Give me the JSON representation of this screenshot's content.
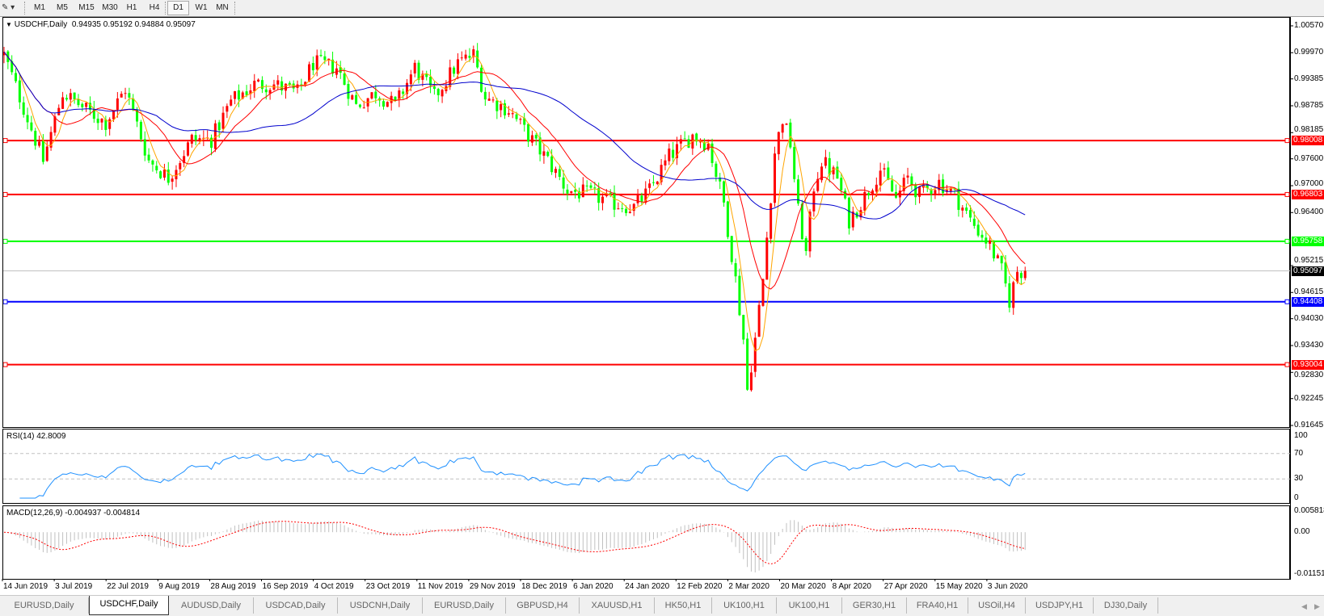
{
  "toolbar": {
    "timeframes": [
      "M1",
      "M5",
      "M15",
      "M30",
      "H1",
      "H4",
      "D1",
      "W1",
      "MN"
    ],
    "active_timeframe": "D1"
  },
  "main": {
    "symbol_label": "USDCHF,Daily",
    "ohlc": "0.94935 0.95192 0.94884 0.95097"
  },
  "chart_data": {
    "type": "candlestick",
    "symbol": "USDCHF",
    "timeframe": "Daily",
    "last_bar": {
      "open": 0.94935,
      "high": 0.95192,
      "low": 0.94884,
      "close": 0.95097
    },
    "bull_color": "#ff0000",
    "bear_color": "#00ff00",
    "close_anchors": [
      [
        0,
        0.99926
      ],
      [
        10,
        0.97557
      ],
      [
        15,
        0.99073
      ],
      [
        21,
        0.98694
      ],
      [
        26,
        0.9841
      ],
      [
        31,
        0.99168
      ],
      [
        37,
        0.97557
      ],
      [
        42,
        0.97178
      ],
      [
        48,
        0.98031
      ],
      [
        53,
        0.98031
      ],
      [
        58,
        0.98883
      ],
      [
        64,
        0.99262
      ],
      [
        69,
        0.99262
      ],
      [
        75,
        0.99073
      ],
      [
        79,
        0.99736
      ],
      [
        85,
        0.99641
      ],
      [
        90,
        0.98789
      ],
      [
        95,
        0.99073
      ],
      [
        100,
        0.98789
      ],
      [
        105,
        0.99641
      ],
      [
        110,
        0.98978
      ],
      [
        116,
        0.99736
      ],
      [
        120,
        0.99926
      ],
      [
        123,
        0.98978
      ],
      [
        129,
        0.98694
      ],
      [
        134,
        0.98125
      ],
      [
        139,
        0.97557
      ],
      [
        144,
        0.96894
      ],
      [
        150,
        0.96799
      ],
      [
        156,
        0.96609
      ],
      [
        161,
        0.96515
      ],
      [
        165,
        0.96894
      ],
      [
        170,
        0.97652
      ],
      [
        176,
        0.98125
      ],
      [
        180,
        0.97936
      ],
      [
        184,
        0.96609
      ],
      [
        187,
        0.94904
      ],
      [
        189,
        0.93577
      ],
      [
        190,
        0.9244
      ],
      [
        192,
        0.93577
      ],
      [
        194,
        0.94904
      ],
      [
        197,
        0.97746
      ],
      [
        199,
        0.98504
      ],
      [
        201,
        0.97936
      ],
      [
        203,
        0.9642
      ],
      [
        205,
        0.95472
      ],
      [
        207,
        0.96988
      ],
      [
        209,
        0.97557
      ],
      [
        213,
        0.97178
      ],
      [
        216,
        0.9623
      ],
      [
        219,
        0.96609
      ],
      [
        224,
        0.97367
      ],
      [
        228,
        0.96704
      ],
      [
        231,
        0.97178
      ],
      [
        234,
        0.96799
      ],
      [
        239,
        0.97083
      ],
      [
        243,
        0.96799
      ],
      [
        247,
        0.9623
      ],
      [
        252,
        0.95662
      ],
      [
        255,
        0.95093
      ],
      [
        257,
        0.9443
      ],
      [
        259,
        0.95093
      ],
      [
        261,
        0.95097
      ]
    ],
    "price_axis": {
      "ylim": [
        0.91645,
        1.0057
      ],
      "ticks": [
        "1.00570",
        "0.99970",
        "0.99385",
        "0.98785",
        "0.98185",
        "0.97600",
        "0.97000",
        "0.96400",
        "0.95215",
        "0.94615",
        "0.94030",
        "0.93430",
        "0.92830",
        "0.92245",
        "0.91645"
      ]
    },
    "levels": [
      {
        "price": "0.98008",
        "color": "#ff0000"
      },
      {
        "price": "0.96803",
        "color": "#ff0000"
      },
      {
        "price": "0.95758",
        "color": "#00ff00"
      },
      {
        "price": "0.94408",
        "color": "#0000ff"
      },
      {
        "price": "0.93004",
        "color": "#ff0000"
      }
    ],
    "bid_line": {
      "price": "0.95097",
      "color": "#c0c0c0",
      "label_bg": "#000000"
    },
    "moving_average_colors": [
      "#ffa500",
      "#ff0000",
      "#0000cd"
    ],
    "x_labels": [
      "14 Jun 2019",
      "3 Jul 2019",
      "22 Jul 2019",
      "9 Aug 2019",
      "28 Aug 2019",
      "16 Sep 2019",
      "4 Oct 2019",
      "23 Oct 2019",
      "11 Nov 2019",
      "29 Nov 2019",
      "18 Dec 2019",
      "6 Jan 2020",
      "24 Jan 2020",
      "12 Feb 2020",
      "2 Mar 2020",
      "20 Mar 2020",
      "8 Apr 2020",
      "27 Apr 2020",
      "15 May 2020",
      "3 Jun 2020"
    ]
  },
  "rsi": {
    "title": "RSI(14) 42.8009",
    "ticks": [
      "100",
      "70",
      "30",
      "0"
    ],
    "levels": [
      70,
      30
    ],
    "color": "#1e90ff"
  },
  "macd": {
    "title": "MACD(12,26,9) -0.004937 -0.004814",
    "ticks": [
      "0.005818",
      "0.00",
      "-0.011514"
    ],
    "range": [
      -0.011514,
      0.005818
    ],
    "histogram_color": "#c0c0c0",
    "signal_color": "#ff0000"
  },
  "tabs": [
    "EURUSD,Daily",
    "USDCHF,Daily",
    "AUDUSD,Daily",
    "USDCAD,Daily",
    "USDCNH,Daily",
    "EURUSD,Daily",
    "GBPUSD,H4",
    "XAUUSD,H1",
    "HK50,H1",
    "UK100,H1",
    "UK100,H1",
    "GER30,H1",
    "FRA40,H1",
    "USOil,H4",
    "USDJPY,H1",
    "DJ30,Daily"
  ],
  "active_tab": "USDCHF,Daily"
}
